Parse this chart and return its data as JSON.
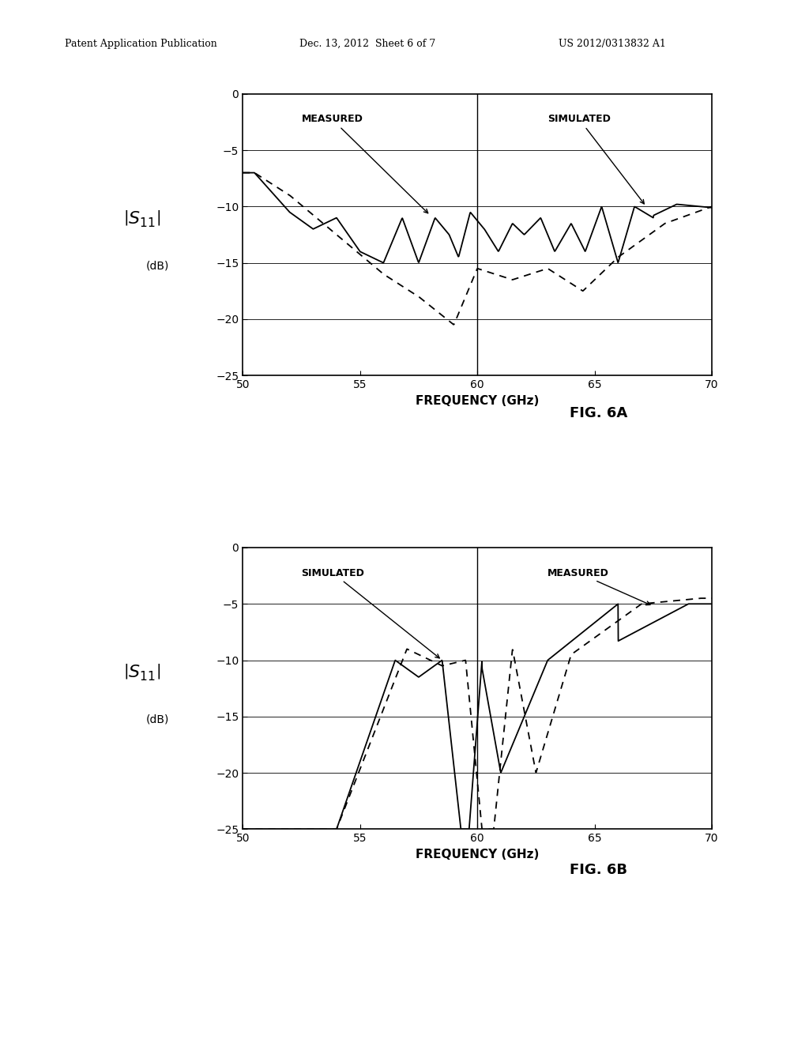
{
  "fig6a": {
    "title": "FIG. 6A",
    "xlabel": "FREQUENCY (GHz)",
    "xlim": [
      50,
      70
    ],
    "ylim": [
      -25,
      0
    ],
    "yticks": [
      0,
      -5,
      -10,
      -15,
      -20,
      -25
    ],
    "xticks": [
      50,
      55,
      60,
      65,
      70
    ],
    "xline": 60,
    "measured_label": "MEASURED",
    "simulated_label": "SIMULATED"
  },
  "fig6b": {
    "title": "FIG. 6B",
    "xlabel": "FREQUENCY (GHz)",
    "xlim": [
      50,
      70
    ],
    "ylim": [
      -25,
      0
    ],
    "yticks": [
      0,
      -5,
      -10,
      -15,
      -20,
      -25
    ],
    "xticks": [
      50,
      55,
      60,
      65,
      70
    ],
    "xline": 60,
    "simulated_label": "SIMULATED",
    "measured_label": "MEASURED"
  },
  "header_left": "Patent Application Publication",
  "header_center": "Dec. 13, 2012  Sheet 6 of 7",
  "header_right": "US 2012/0313832 A1",
  "bg_color": "#ffffff",
  "line_color": "#000000"
}
